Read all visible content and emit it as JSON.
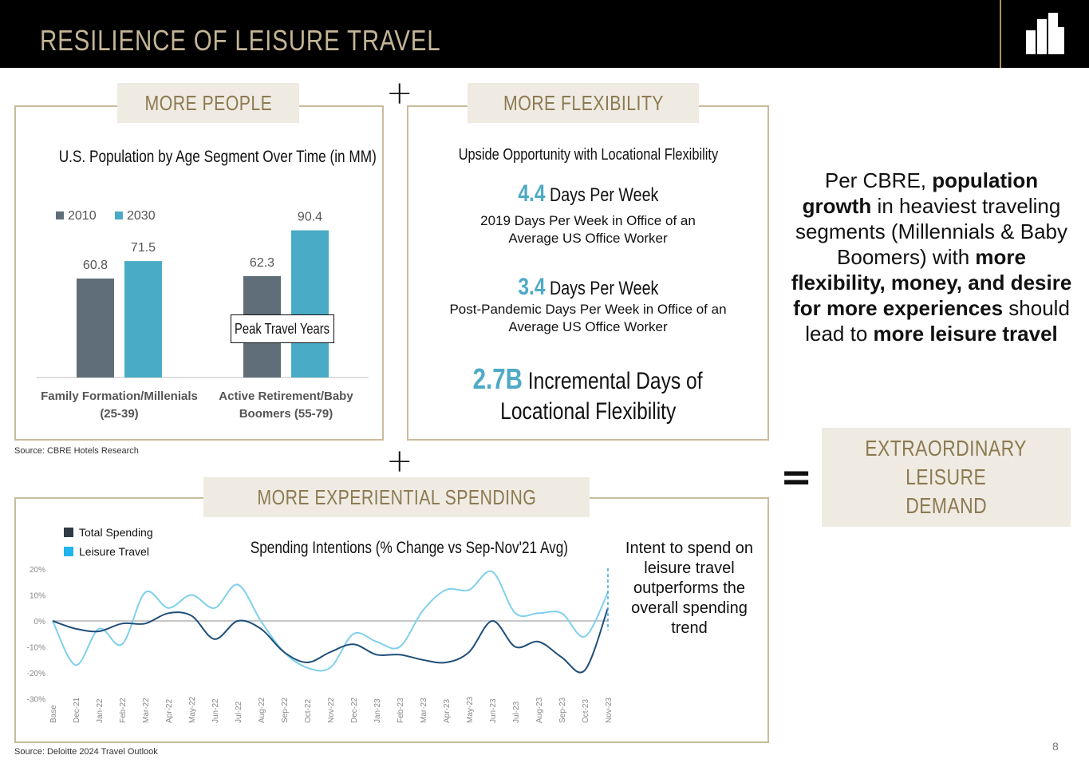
{
  "header": {
    "title": "RESILIENCE OF LEISURE TRAVEL"
  },
  "colors": {
    "header_bg": "#000000",
    "gold": "#8c7a52",
    "beige": "#efebe2",
    "dark_bar": "#5f6e78",
    "teal_bar": "#4aabc6",
    "total_line": "#1f4e79",
    "leisure_line": "#7fd0ec"
  },
  "panels": {
    "more_people": {
      "label": "MORE PEOPLE",
      "chart_title": "U.S. Population by Age Segment Over Time (in MM)",
      "peak_label": "Peak Travel Years",
      "source": "Source:  CBRE Hotels Research"
    },
    "more_flexibility": {
      "label": "MORE FLEXIBILITY",
      "title": "Upside Opportunity with Locational Flexibility",
      "stat1": {
        "value": "4.4",
        "unit": "Days Per Week",
        "desc1": "2019 Days Per Week in Office of an",
        "desc2": "Average US Office Worker"
      },
      "stat2": {
        "value": "3.4",
        "unit": "Days Per Week",
        "desc1": "Post-Pandemic Days Per Week in Office of an",
        "desc2": "Average US Office Worker"
      },
      "stat3": {
        "value": "2.7B",
        "unit": "Incremental Days of",
        "line2": "Locational Flexibility"
      }
    },
    "more_spending": {
      "label": "MORE EXPERIENTIAL SPENDING",
      "chart_title": "Spending Intentions (% Change vs Sep-Nov'21 Avg)",
      "side_note": "Intent to spend on leisure travel outperforms the overall spending trend",
      "source": "Source:  Deloitte 2024 Travel Outlook"
    }
  },
  "plus_sign": "+",
  "equals_sign": "=",
  "summary": {
    "t1": "Per CBRE, ",
    "b1": "population growth",
    "t2": " in heaviest traveling segments (Millennials & Baby Boomers) with ",
    "b2": "more flexibility, money, and desire for more experiences",
    "t3": " should lead to ",
    "b3": "more leisure travel"
  },
  "result": {
    "line1": "EXTRAORDINARY",
    "line2": "LEISURE",
    "line3": "DEMAND"
  },
  "page_number": "8",
  "chart_data": [
    {
      "type": "bar",
      "title": "U.S. Population by Age Segment Over Time (in MM)",
      "categories": [
        "Family Formation/Millenials (25-39)",
        "Active Retirement/Baby Boomers (55-79)"
      ],
      "category_lines": [
        [
          "Family Formation/Millenials",
          "(25-39)"
        ],
        [
          "Active Retirement/Baby",
          "Boomers (55-79)"
        ]
      ],
      "series": [
        {
          "name": "2010",
          "values": [
            60.8,
            62.3
          ],
          "color": "#5f6e78"
        },
        {
          "name": "2030",
          "values": [
            71.5,
            90.4
          ],
          "color": "#4aabc6"
        }
      ],
      "legend": "top-left",
      "ylim": [
        0,
        100
      ]
    },
    {
      "type": "line",
      "title": "Spending Intentions (% Change vs Sep-Nov'21 Avg)",
      "x": [
        "Base",
        "Dec-21",
        "Jan-22",
        "Feb-22",
        "Mar-22",
        "Apr-22",
        "May-22",
        "Jun-22",
        "Jul-22",
        "Aug-22",
        "Sep-22",
        "Oct-22",
        "Nov-22",
        "Dec-22",
        "Jan-23",
        "Feb-23",
        "Mar-23",
        "Apr-23",
        "May-23",
        "Jun-23",
        "Jul-23",
        "Aug-23",
        "Sep-23",
        "Oct-23",
        "Nov-23"
      ],
      "y_ticks": [
        "20%",
        "10%",
        "0%",
        "-10%",
        "-20%",
        "-30%"
      ],
      "ylim": [
        -30,
        20
      ],
      "legend": "top-left",
      "series": [
        {
          "name": "Total Spending",
          "color": "#1f4e79",
          "values": [
            0,
            -3,
            -4,
            -1,
            -1,
            3,
            2,
            -7,
            0,
            -3,
            -12,
            -16,
            -12,
            -9,
            -13,
            -13,
            -15,
            -16,
            -12,
            0,
            -10,
            -8,
            -14,
            -19,
            5
          ]
        },
        {
          "name": "Leisure Travel",
          "color": "#7fd0ec",
          "values": [
            0,
            -17,
            -3,
            -9,
            11,
            5,
            10,
            5,
            14,
            0,
            -12,
            -18,
            -18,
            -5,
            -8,
            -10,
            4,
            12,
            12,
            19,
            3,
            3,
            3,
            -6,
            11
          ]
        }
      ]
    }
  ]
}
